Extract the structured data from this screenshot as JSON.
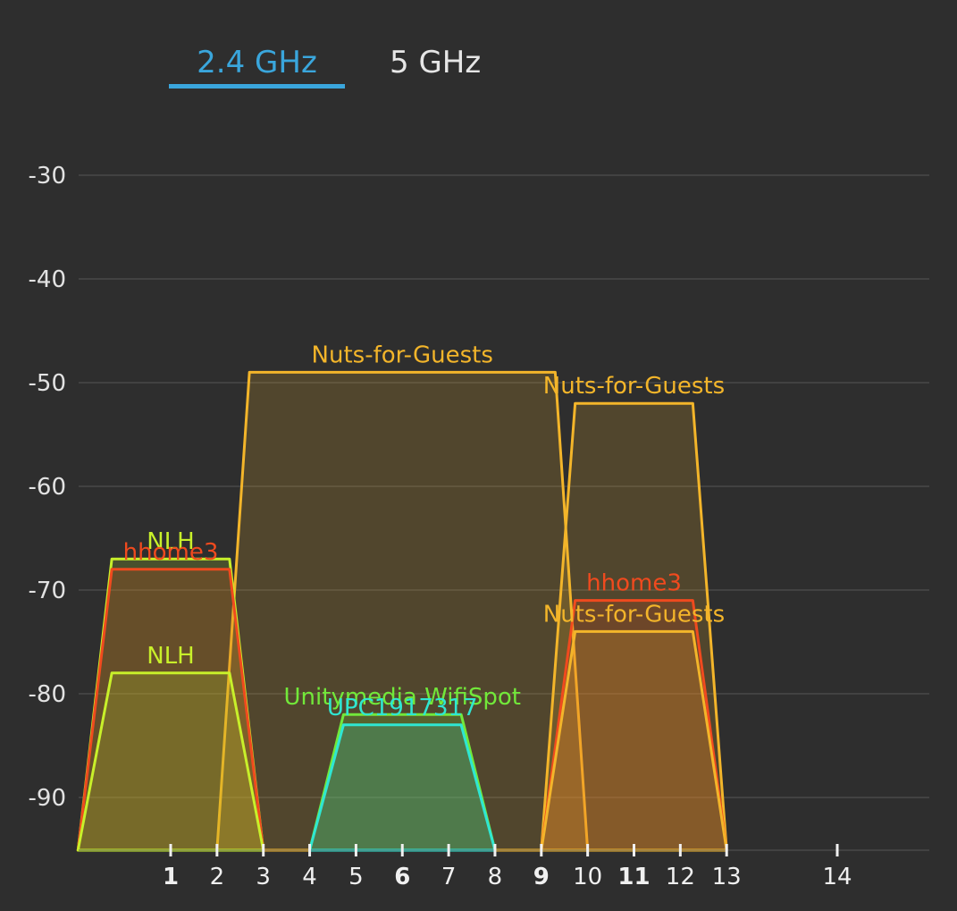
{
  "tabs": [
    {
      "label": "2.4 GHz",
      "active": true
    },
    {
      "label": "5 GHz",
      "active": false
    }
  ],
  "colors": {
    "background": "#2e2e2e",
    "grid": "#555555",
    "active_tab": "#3aa6dc",
    "axis_text": "#e2e2e2"
  },
  "chart_data": {
    "type": "area",
    "xlabel": "",
    "ylabel": "",
    "x_ticks": [
      {
        "label": "1",
        "value": 1,
        "bold": true
      },
      {
        "label": "2",
        "value": 2,
        "bold": false
      },
      {
        "label": "3",
        "value": 3,
        "bold": false
      },
      {
        "label": "4",
        "value": 4,
        "bold": false
      },
      {
        "label": "5",
        "value": 5,
        "bold": false
      },
      {
        "label": "6",
        "value": 6,
        "bold": true
      },
      {
        "label": "7",
        "value": 7,
        "bold": false
      },
      {
        "label": "8",
        "value": 8,
        "bold": false
      },
      {
        "label": "9",
        "value": 9,
        "bold": true
      },
      {
        "label": "10",
        "value": 10,
        "bold": false
      },
      {
        "label": "11",
        "value": 11,
        "bold": true
      },
      {
        "label": "12",
        "value": 12,
        "bold": false
      },
      {
        "label": "13",
        "value": 13,
        "bold": false
      },
      {
        "label": "14",
        "value": 14,
        "bold": false
      }
    ],
    "y_ticks": [
      -30,
      -40,
      -50,
      -60,
      -70,
      -80,
      -90
    ],
    "ylim": [
      -95,
      -25
    ],
    "grid": true,
    "series": [
      {
        "name": "Nuts-for-Guests",
        "channel": 6,
        "width_mhz": 40,
        "signal_dbm": -49,
        "color": "#f3b52a"
      },
      {
        "name": "Nuts-for-Guests",
        "channel": 11,
        "width_mhz": 20,
        "signal_dbm": -52,
        "color": "#f3b52a"
      },
      {
        "name": "hhome3",
        "channel": 11,
        "width_mhz": 20,
        "signal_dbm": -71,
        "color": "#f04a1e"
      },
      {
        "name": "Nuts-for-Guests",
        "channel": 11,
        "width_mhz": 20,
        "signal_dbm": -74,
        "color": "#f3b52a"
      },
      {
        "name": "NLH",
        "channel": 1,
        "width_mhz": 20,
        "signal_dbm": -67,
        "color": "#c8f02a"
      },
      {
        "name": "hhome3",
        "channel": 1,
        "width_mhz": 20,
        "signal_dbm": -68,
        "color": "#f04a1e"
      },
      {
        "name": "NLH",
        "channel": 1,
        "width_mhz": 20,
        "signal_dbm": -78,
        "color": "#c8f02a"
      },
      {
        "name": "Unitymedia WifiSpot",
        "channel": 6,
        "width_mhz": 20,
        "signal_dbm": -82,
        "color": "#72e83a"
      },
      {
        "name": "UPC1917317",
        "channel": 6,
        "width_mhz": 20,
        "signal_dbm": -83,
        "color": "#2fe6d2"
      }
    ]
  }
}
